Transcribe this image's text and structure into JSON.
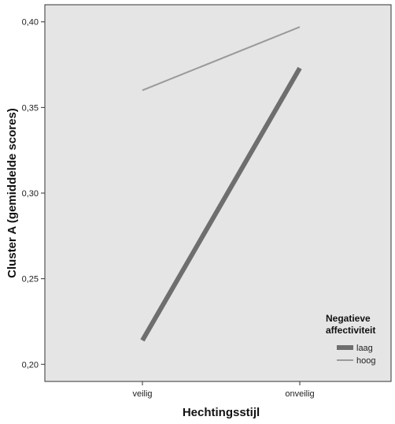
{
  "chart_data": {
    "type": "line",
    "xlabel": "Hechtingsstijl",
    "ylabel": "Cluster A (gemiddelde scores)",
    "categories": [
      "veilig",
      "onveilig"
    ],
    "ylim": [
      0.19,
      0.41
    ],
    "yticks": [
      "0,20",
      "0,25",
      "0,30",
      "0,35",
      "0,40"
    ],
    "ytick_values": [
      0.2,
      0.25,
      0.3,
      0.35,
      0.4
    ],
    "grid": false,
    "legend": {
      "title_line1": "Negatieve",
      "title_line2": "affectiviteit",
      "placement": "right"
    },
    "series": [
      {
        "name": "laag",
        "values": [
          0.214,
          0.373
        ],
        "color": "#6e6e6e"
      },
      {
        "name": "hoog",
        "values": [
          0.36,
          0.397
        ],
        "color": "#9a9a9a"
      }
    ],
    "plot_background": "#e5e5e5"
  }
}
